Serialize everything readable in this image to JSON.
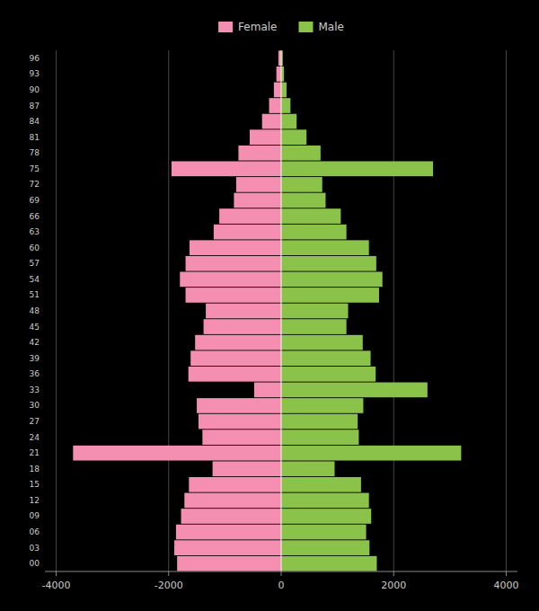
{
  "chart_data": {
    "type": "bar",
    "orientation": "horizontal",
    "categories": [
      "00",
      "03",
      "06",
      "09",
      "12",
      "15",
      "18",
      "21",
      "24",
      "27",
      "30",
      "33",
      "36",
      "39",
      "42",
      "45",
      "48",
      "51",
      "54",
      "57",
      "60",
      "63",
      "66",
      "69",
      "72",
      "75",
      "78",
      "81",
      "84",
      "87",
      "90",
      "93",
      "96"
    ],
    "series": [
      {
        "name": "Female",
        "color": "#f48fb1",
        "values": [
          -1850,
          -1900,
          -1870,
          -1780,
          -1720,
          -1640,
          -1220,
          -3700,
          -1400,
          -1470,
          -1500,
          -480,
          -1650,
          -1610,
          -1530,
          -1380,
          -1340,
          -1700,
          -1800,
          -1700,
          -1630,
          -1200,
          -1100,
          -840,
          -800,
          -1950,
          -760,
          -560,
          -340,
          -215,
          -130,
          -85,
          -50
        ]
      },
      {
        "name": "Male",
        "color": "#8bc34a",
        "values": [
          1700,
          1570,
          1510,
          1600,
          1560,
          1420,
          950,
          3200,
          1380,
          1360,
          1460,
          2600,
          1680,
          1590,
          1450,
          1160,
          1190,
          1740,
          1800,
          1690,
          1560,
          1160,
          1060,
          790,
          730,
          2700,
          700,
          450,
          275,
          165,
          95,
          50,
          28
        ]
      }
    ],
    "xlim": [
      -4200,
      4200
    ],
    "xticks": [
      -4000,
      -2000,
      0,
      2000,
      4000
    ],
    "grid": true,
    "legend": "top"
  }
}
